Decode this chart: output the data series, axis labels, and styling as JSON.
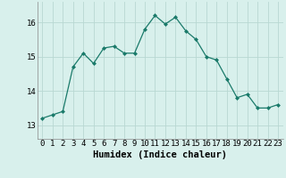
{
  "x": [
    0,
    1,
    2,
    3,
    4,
    5,
    6,
    7,
    8,
    9,
    10,
    11,
    12,
    13,
    14,
    15,
    16,
    17,
    18,
    19,
    20,
    21,
    22,
    23
  ],
  "y": [
    13.2,
    13.3,
    13.4,
    14.7,
    15.1,
    14.8,
    15.25,
    15.3,
    15.1,
    15.1,
    15.8,
    16.2,
    15.95,
    16.15,
    15.75,
    15.5,
    15.0,
    14.9,
    14.35,
    13.8,
    13.9,
    13.5,
    13.5,
    13.6
  ],
  "line_color": "#1a7a6a",
  "marker_color": "#1a7a6a",
  "bg_color": "#d8f0ec",
  "grid_color": "#b8d8d2",
  "xlabel": "Humidex (Indice chaleur)",
  "yticks": [
    13,
    14,
    15,
    16
  ],
  "xticks": [
    0,
    1,
    2,
    3,
    4,
    5,
    6,
    7,
    8,
    9,
    10,
    11,
    12,
    13,
    14,
    15,
    16,
    17,
    18,
    19,
    20,
    21,
    22,
    23
  ],
  "ylim": [
    12.6,
    16.6
  ],
  "xlim": [
    -0.5,
    23.5
  ],
  "xlabel_fontsize": 7.5,
  "tick_fontsize": 6.5
}
